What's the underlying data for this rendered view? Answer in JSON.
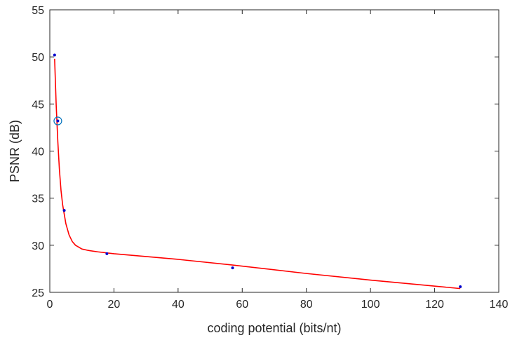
{
  "chart_data": {
    "type": "scatter",
    "title": "",
    "xlabel": "coding potential (bits/nt)",
    "ylabel": "PSNR (dB)",
    "xlim": [
      0,
      140
    ],
    "ylim": [
      25,
      55
    ],
    "xticks": [
      0,
      20,
      40,
      60,
      80,
      100,
      120,
      140
    ],
    "yticks": [
      25,
      30,
      35,
      40,
      45,
      50,
      55
    ],
    "grid": false,
    "legend": "none",
    "series": [
      {
        "type": "scatter",
        "color": "#0000cc",
        "points": [
          {
            "x": 1.5,
            "y": 50.2
          },
          {
            "x": 2.5,
            "y": 43.2
          },
          {
            "x": 4.5,
            "y": 33.7
          },
          {
            "x": 17.8,
            "y": 29.1
          },
          {
            "x": 57.0,
            "y": 27.6
          },
          {
            "x": 128.0,
            "y": 25.6
          }
        ]
      },
      {
        "type": "line",
        "color": "#ff0000",
        "x": [
          1.5,
          2.0,
          2.5,
          3.0,
          3.5,
          4.0,
          5.0,
          6.0,
          7.0,
          8.0,
          10.0,
          12.0,
          15.0,
          20.0,
          30.0,
          40.0,
          57.0,
          80.0,
          100.0,
          128.0
        ],
        "y": [
          49.8,
          44.8,
          41.0,
          38.0,
          35.8,
          34.3,
          32.3,
          31.1,
          30.4,
          30.0,
          29.6,
          29.45,
          29.3,
          29.1,
          28.8,
          28.5,
          27.9,
          27.0,
          26.3,
          25.4
        ]
      }
    ],
    "highlight": {
      "x": 2.5,
      "y": 43.2,
      "shape": "circle",
      "color": "#0072bd"
    }
  }
}
